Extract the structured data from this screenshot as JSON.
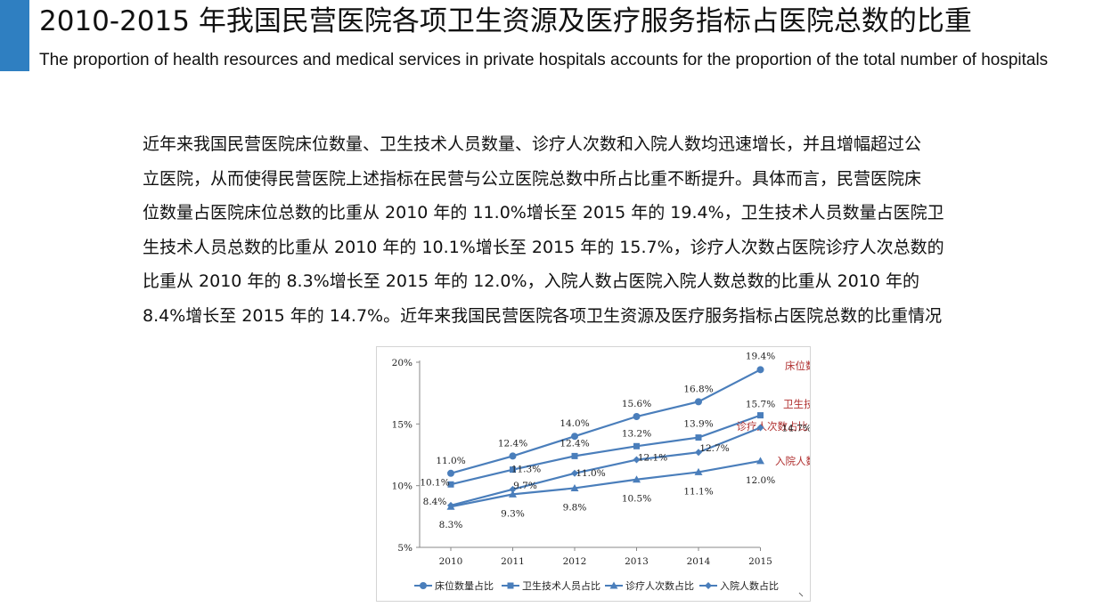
{
  "header": {
    "title": "2010-2015 年我国民营医院各项卫生资源及医疗服务指标占医院总数的比重",
    "subtitle": "The proportion of health resources and medical services in private hospitals accounts for the proportion of the total number of hospitals",
    "accent_color": "#2f7fc1"
  },
  "body": {
    "lines": [
      "近年来我国民营医院床位数量、卫生技术人员数量、诊疗人次数和入院人数均迅速增长，并且增幅超过公",
      "立医院，从而使得民营医院上述指标在民营与公立医院总数中所占比重不断提升。具体而言，民营医院床",
      "位数量占医院床位总数的比重从 2010 年的 11.0%增长至 2015 年的 19.4%，卫生技术人员数量占医院卫",
      "生技术人员总数的比重从 2010 年的 10.1%增长至 2015 年的 15.7%，诊疗人次数占医院诊疗人次总数的",
      "比重从 2010 年的 8.3%增长至 2015 年的 12.0%，入院人数占医院入院人数总数的比重从 2010 年的",
      "8.4%增长至 2015 年的 14.7%。近年来我国民营医院各项卫生资源及医疗服务指标占医院总数的比重情况"
    ]
  },
  "chart_data": {
    "type": "line",
    "x": [
      "2010",
      "2011",
      "2012",
      "2013",
      "2014",
      "2015"
    ],
    "ylim": [
      5,
      20
    ],
    "yticks": [
      "5%",
      "10%",
      "15%",
      "20%"
    ],
    "grid": false,
    "line_color": "#4a7ebb",
    "label_color": "#b03030",
    "legend_position": "bottom",
    "series": [
      {
        "name": "床位数量占比",
        "marker": "circle",
        "values": [
          11.0,
          12.4,
          14.0,
          15.6,
          16.8,
          19.4
        ],
        "labels": [
          "11.0%",
          "12.4%",
          "14.0%",
          "15.6%",
          "16.8%",
          "19.4%"
        ],
        "end_label": "床位数量占比"
      },
      {
        "name": "卫生技术人员占比",
        "marker": "square",
        "values": [
          10.1,
          11.3,
          12.4,
          13.2,
          13.9,
          15.7
        ],
        "labels": [
          "10.1%",
          "11.3%",
          "12.4%",
          "13.2%",
          "13.9%",
          "15.7%"
        ],
        "end_label": "卫生技术人员占比"
      },
      {
        "name": "诊疗人次数占比",
        "marker": "triangle",
        "values": [
          8.3,
          9.3,
          9.8,
          10.5,
          11.1,
          12.0
        ],
        "labels": [
          "8.3%",
          "9.3%",
          "9.8%",
          "10.5%",
          "11.1%",
          "12.0%"
        ],
        "end_label": "诊疗人次数占比"
      },
      {
        "name": "入院人数占比",
        "marker": "diamond",
        "values": [
          8.4,
          9.7,
          11.0,
          12.1,
          12.7,
          14.7
        ],
        "labels": [
          "8.4%",
          "9.7%",
          "11.0%",
          "12.1%",
          "12.7%",
          "14.7%"
        ],
        "end_label": "入院人数占比"
      }
    ]
  }
}
